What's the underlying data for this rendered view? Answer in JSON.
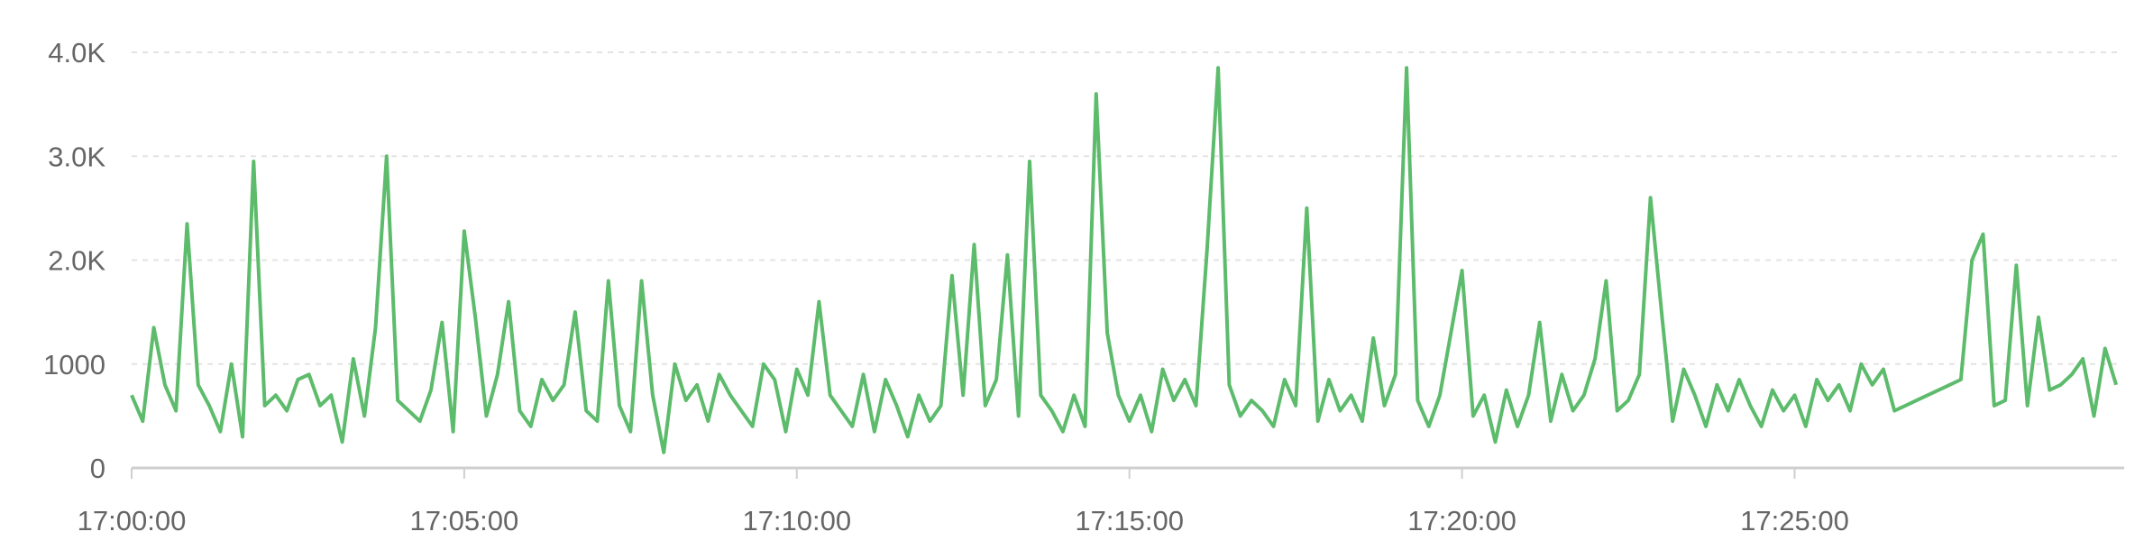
{
  "chart_data": {
    "type": "line",
    "title": "",
    "xlabel": "",
    "ylabel": "",
    "ylim": [
      0,
      4000
    ],
    "yticks": [
      0,
      1000,
      2000,
      3000,
      4000
    ],
    "ytick_labels": [
      "0",
      "1000",
      "2.0K",
      "3.0K",
      "4.0K"
    ],
    "xlim": [
      "17:00:00",
      "17:29:54"
    ],
    "xtick_labels": [
      "17:00:00",
      "17:05:00",
      "17:10:00",
      "17:15:00",
      "17:20:00",
      "17:25:00"
    ],
    "grid": true,
    "line_color": "#5dbb6c",
    "x_start": "17:00:00",
    "x_interval_seconds": 10,
    "values": [
      700,
      450,
      1350,
      800,
      550,
      2350,
      800,
      600,
      350,
      1000,
      300,
      2950,
      600,
      700,
      550,
      850,
      900,
      600,
      700,
      250,
      1050,
      500,
      1350,
      3000,
      650,
      550,
      450,
      750,
      1400,
      350,
      2280,
      1450,
      500,
      900,
      1600,
      550,
      400,
      850,
      650,
      800,
      1500,
      550,
      450,
      1800,
      600,
      350,
      1800,
      700,
      150,
      1000,
      650,
      800,
      450,
      900,
      700,
      550,
      400,
      1000,
      850,
      350,
      950,
      700,
      1600,
      700,
      550,
      400,
      900,
      350,
      850,
      600,
      300,
      700,
      450,
      600,
      1850,
      700,
      2150,
      600,
      850,
      2050,
      500,
      2950,
      700,
      550,
      350,
      700,
      400,
      3600,
      1300,
      700,
      450,
      700,
      350,
      950,
      650,
      850,
      600,
      2100,
      3850,
      800,
      500,
      650,
      550,
      400,
      850,
      600,
      2500,
      450,
      850,
      550,
      700,
      450,
      1250,
      600,
      900,
      3850,
      650,
      400,
      700,
      1300,
      1900,
      500,
      700,
      250,
      750,
      400,
      700,
      1400,
      450,
      900,
      550,
      700,
      1050,
      1800,
      550,
      650,
      900,
      2600,
      1500,
      450,
      950,
      700,
      400,
      800,
      550,
      850,
      600,
      400,
      750,
      550,
      700,
      400,
      850,
      650,
      800,
      550,
      1000,
      800,
      950,
      550,
      600,
      650,
      700,
      750,
      800,
      850,
      2000,
      2250,
      600,
      650,
      1950,
      600,
      1450,
      750,
      800,
      900,
      1050,
      500,
      1150,
      800
    ]
  }
}
